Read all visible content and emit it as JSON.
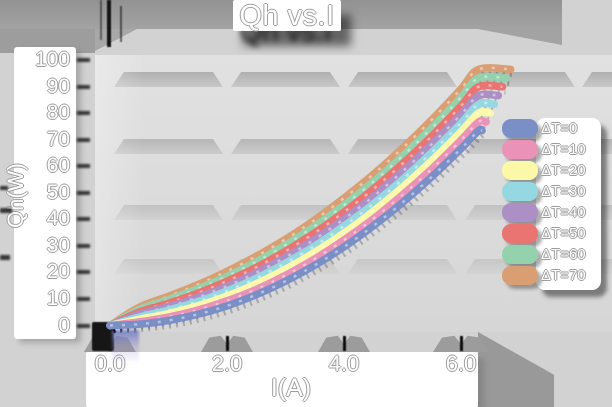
{
  "title": "Qh vs.I",
  "y_axis": {
    "label": "Qh(W)",
    "ticks": [
      "100",
      "90",
      "80",
      "70",
      "60",
      "50",
      "40",
      "30",
      "20",
      "10",
      "0"
    ]
  },
  "x_axis": {
    "label": "I(A)",
    "ticks": [
      "0.0",
      "2.0",
      "4.0",
      "6.0"
    ]
  },
  "legend": {
    "items": [
      {
        "label": "ΔT=0",
        "color": "#7b8fc7"
      },
      {
        "label": "ΔT=10",
        "color": "#ea92b8"
      },
      {
        "label": "ΔT=20",
        "color": "#fbf8a8"
      },
      {
        "label": "ΔT=30",
        "color": "#96d8e2"
      },
      {
        "label": "ΔT=40",
        "color": "#ab8fc5"
      },
      {
        "label": "ΔT=50",
        "color": "#ea7472"
      },
      {
        "label": "ΔT=60",
        "color": "#93d2ac"
      },
      {
        "label": "ΔT=70",
        "color": "#d99e72"
      }
    ]
  },
  "chart_data": {
    "type": "line",
    "title": "Qh vs.I",
    "xlabel": "I(A)",
    "ylabel": "Qh(W)",
    "xlim": [
      0,
      6.9
    ],
    "ylim": [
      0,
      100
    ],
    "x_ticks": [
      0,
      2,
      4,
      6
    ],
    "y_ticks": [
      0,
      10,
      20,
      30,
      40,
      50,
      60,
      70,
      80,
      90,
      100
    ],
    "grid": "horizontal-bands",
    "legend_position": "right",
    "x": [
      0,
      0.5,
      1,
      1.5,
      2,
      2.5,
      3,
      3.5,
      4,
      4.5,
      5,
      5.5,
      6,
      6.3
    ],
    "series": [
      {
        "name": "ΔT=0",
        "color": "#7b8fc7",
        "values": [
          0,
          0.5,
          1.9,
          4.2,
          7.4,
          11.6,
          16.7,
          22.7,
          29.6,
          37.5,
          46.3,
          56.0,
          66.6,
          73.4
        ]
      },
      {
        "name": "ΔT=10",
        "color": "#ea92b8",
        "values": [
          0,
          1.4,
          3.2,
          5.8,
          9.3,
          13.6,
          18.9,
          25.1,
          32.2,
          40.2,
          49.2,
          59.0,
          69.8,
          76.7
        ]
      },
      {
        "name": "ΔT=20",
        "color": "#fbf8a8",
        "values": [
          0,
          2.3,
          4.5,
          7.4,
          11.1,
          15.7,
          21.2,
          27.6,
          34.8,
          43.0,
          52.1,
          62.1,
          73.0,
          80.0
        ]
      },
      {
        "name": "ΔT=30",
        "color": "#96d8e2",
        "values": [
          0,
          3.2,
          5.8,
          9.0,
          13.0,
          17.8,
          23.5,
          30.0,
          37.5,
          45.8,
          55.0,
          65.2,
          76.2,
          83.3
        ]
      },
      {
        "name": "ΔT=40",
        "color": "#ab8fc5",
        "values": [
          0,
          4.2,
          7.1,
          10.6,
          14.8,
          19.9,
          25.7,
          32.5,
          40.1,
          48.6,
          58.0,
          68.3,
          79.4,
          86.6
        ]
      },
      {
        "name": "ΔT=50",
        "color": "#ea7472",
        "values": [
          0,
          5.1,
          8.4,
          12.2,
          16.7,
          21.9,
          28.0,
          34.9,
          42.7,
          51.4,
          60.9,
          71.3,
          82.7,
          89.9
        ]
      },
      {
        "name": "ΔT=60",
        "color": "#93d2ac",
        "values": [
          0,
          6.0,
          9.7,
          13.8,
          18.5,
          24.0,
          30.3,
          37.4,
          45.3,
          54.1,
          63.8,
          74.4,
          85.9,
          93.2
        ]
      },
      {
        "name": "ΔT=70",
        "color": "#d99e72",
        "values": [
          0,
          6.9,
          11.0,
          15.4,
          20.4,
          26.1,
          32.5,
          39.8,
          48.0,
          56.9,
          66.8,
          77.5,
          89.1,
          96.5
        ]
      }
    ]
  }
}
